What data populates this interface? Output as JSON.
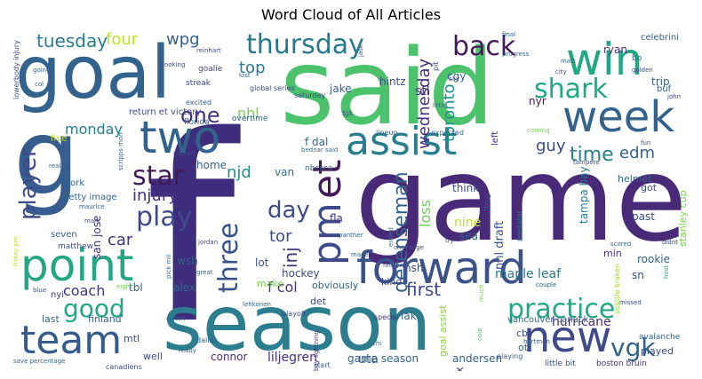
{
  "title": "Word Cloud of All Articles",
  "words": {
    "f": "f",
    "game": "game",
    "said": "said",
    "season": "season",
    "goal": "goal",
    "g": "g",
    "forward": "forward",
    "point": "point",
    "two": "two",
    "win": "win",
    "week": "week",
    "new": "new",
    "assist": "assist",
    "team": "team",
    "pm": "pm",
    "et": "et",
    "back": "back",
    "thursday": "thursday",
    "shark": "shark",
    "practice": "practice",
    "play": "play",
    "player": "player",
    "star": "star",
    "time": "time",
    "three": "three",
    "day": "day",
    "good": "good",
    "one": "one",
    "vgk": "vgk",
    "defenseman": "defenseman",
    "tuesday": "tuesday",
    "four": "four",
    "wpg": "wpg",
    "top": "top",
    "monday": "monday",
    "wednesday": "wednesday",
    "toronto": "toronto",
    "guy": "guy",
    "edm": "edm",
    "injury": "injury",
    "njd": "njd",
    "car": "car",
    "coach": "coach",
    "inj": "inj",
    "loss": "loss",
    "tor": "tor",
    "first": "first",
    "nhl": "nhl",
    "hurricane": "hurricane",
    "f_col": "f col",
    "maple_leaf": "maple leaf",
    "uta": "uta",
    "nine": "nine",
    "ryan": "ryan",
    "celebrini": "celebrini",
    "cgy": "cgy",
    "stl": "stl",
    "hintz": "hintz",
    "jake": "jake",
    "global_series": "global series",
    "streak": "streak",
    "overtime": "overtime",
    "return_et_victory": "return et victory",
    "florida": "florida",
    "goalie": "goalie",
    "excited": "excited",
    "saturday": "saturday",
    "bednar_said": "bednar said",
    "home": "home",
    "f_dal": "f dal",
    "van": "van",
    "fla": "fla",
    "nbcsca": "nbcsca",
    "work": "work",
    "getty_image": "getty image",
    "san_jose": "san jose",
    "five": "five",
    "seven": "seven",
    "matthew": "matthew",
    "wsh": "wsh",
    "lot": "lot",
    "make": "make",
    "hockey": "hockey",
    "tbl": "tbl",
    "alex": "alex",
    "obviously": "obviously",
    "det": "det",
    "nyi": "nyi",
    "last": "last",
    "finland": "finland",
    "mtl": "mtl",
    "well": "well",
    "connor": "connor",
    "liljegren": "liljegren",
    "game_season": "game season",
    "andersen": "andersen",
    "lak": "lak",
    "nsh": "nsh",
    "kind": "kind",
    "sea": "sea",
    "think": "think",
    "nhl_draft": "nhl draft",
    "tampa_bay": "tampa bay",
    "past": "past",
    "min": "min",
    "sn": "sn",
    "rookie": "rookie",
    "helmet": "helmet",
    "stanley_cup": "stanley cup",
    "got": "got",
    "vancouver_canuck": "vancouver canuck",
    "cbj": "cbj",
    "ott": "ott",
    "played": "played",
    "avalanche": "avalanche",
    "goal_assist": "goal assist",
    "boston_bruin": "boston bruin",
    "little_bit": "little bit",
    "canadiens": "canadiens",
    "dallas": "dallas",
    "colton": "colton",
    "playoff": "playoff",
    "special": "special",
    "playing": "playing",
    "six": "six",
    "nyr": "nyr",
    "trip": "trip",
    "buf": "buf",
    "bo": "bo",
    "left": "left",
    "line": "line",
    "pit": "pit",
    "going": "going",
    "blue": "blue",
    "save_percentage": "save percentage",
    "start": "start",
    "lineup": "lineup",
    "expected": "expected",
    "coming": "coming",
    "tampere": "tampere",
    "lehkonen": "lehkonen",
    "fun": "fun",
    "sjs": "sjs",
    "little": "little",
    "john": "john",
    "matt": "matt",
    "city": "city",
    "progress": "progress",
    "golden": "golden",
    "final": "final",
    "say": "say",
    "lost": "lost",
    "injured": "injured",
    "maurice": "maurice",
    "mark": "mark",
    "really": "really",
    "reinhart": "reinhart",
    "col": "col",
    "looking": "looking",
    "great": "great",
    "eight": "eight",
    "chi": "chi",
    "challenge": "challenge",
    "panther": "panther",
    "nhlcom": "nhlcom",
    "made": "made",
    "try": "try",
    "couple": "couple",
    "missed": "missed",
    "hartman": "hartman",
    "didnt": "didnt",
    "predator": "predator",
    "ended": "ended",
    "cole": "cole",
    "lowerbody_injury": "lowerbody injury",
    "friday_pm": "friday pm",
    "scripps_mon": "scripps mon",
    "seattle_kraken": "seattle kraken",
    "ready": "ready",
    "jordan": "jordan",
    "pick_mil": "pick mil",
    "host": "host",
    "much": "much",
    "scored": "scored",
    "bay_lightning": "bay lightning",
    "jask": "jask"
  },
  "colors": {
    "dark_purple": "#44195a",
    "purple": "#472f7d",
    "indigo": "#3e4a89",
    "blue": "#33638d",
    "steel": "#2a788e",
    "teal": "#21908d",
    "sea": "#22a884",
    "green": "#44bf70",
    "lime": "#7ad151",
    "light_lime": "#bddf26"
  }
}
